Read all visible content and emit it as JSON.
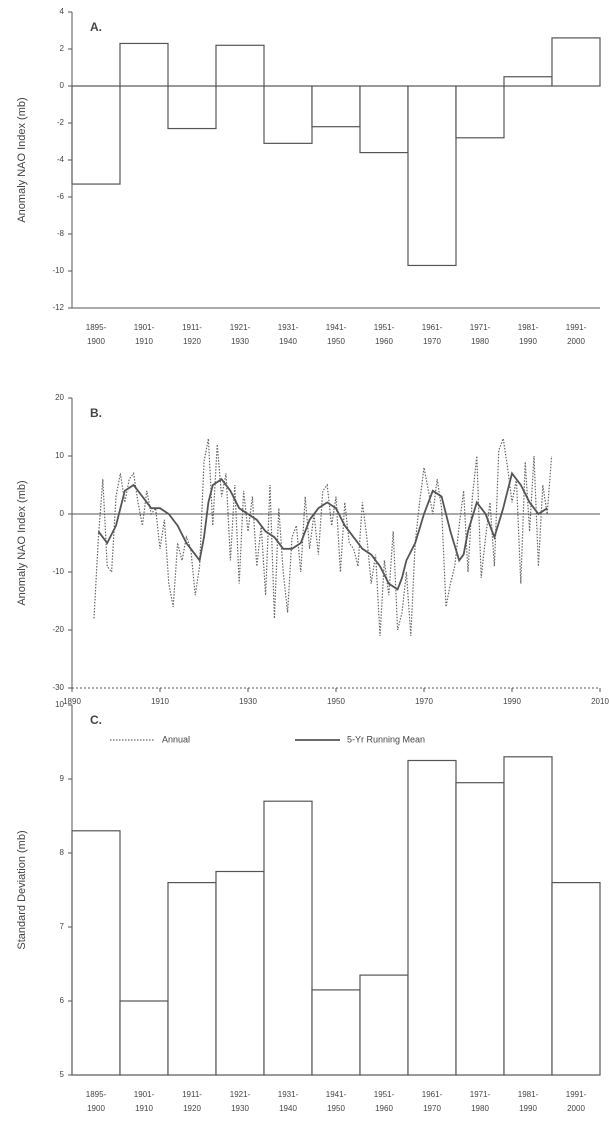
{
  "chart_data": [
    {
      "type": "bar",
      "panel_label": "A.",
      "y_label": "Anomaly NAO Index (mb)",
      "categories": [
        [
          "1895-",
          "1900"
        ],
        [
          "1901-",
          "1910"
        ],
        [
          "1911-",
          "1920"
        ],
        [
          "1921-",
          "1930"
        ],
        [
          "1931-",
          "1940"
        ],
        [
          "1941-",
          "1950"
        ],
        [
          "1951-",
          "1960"
        ],
        [
          "1961-",
          "1970"
        ],
        [
          "1971-",
          "1980"
        ],
        [
          "1981-",
          "1990"
        ],
        [
          "1991-",
          "2000"
        ]
      ],
      "values": [
        -5.3,
        2.3,
        -2.3,
        2.2,
        -3.1,
        -2.2,
        -3.6,
        -9.7,
        -2.8,
        0.5,
        2.6
      ],
      "color": "#ffffff",
      "ylim": [
        -12,
        4
      ],
      "yticks": [
        -12,
        -10,
        -8,
        -6,
        -4,
        -2,
        0,
        2,
        4
      ]
    },
    {
      "type": "line",
      "panel_label": "B.",
      "y_label": "Anomaly NAO Index (mb)",
      "xlim": [
        1890,
        2010
      ],
      "xticks": [
        1890,
        1910,
        1930,
        1950,
        1970,
        1990,
        2010
      ],
      "ylim": [
        -30,
        20
      ],
      "yticks": [
        -30,
        -20,
        -10,
        0,
        10,
        20
      ],
      "series": [
        {
          "name": "Annual",
          "color": "#666666",
          "style": "dotted",
          "x": [
            1895,
            1896,
            1897,
            1898,
            1899,
            1900,
            1901,
            1902,
            1903,
            1904,
            1905,
            1906,
            1907,
            1908,
            1909,
            1910,
            1911,
            1912,
            1913,
            1914,
            1915,
            1916,
            1917,
            1918,
            1919,
            1920,
            1921,
            1922,
            1923,
            1924,
            1925,
            1926,
            1927,
            1928,
            1929,
            1930,
            1931,
            1932,
            1933,
            1934,
            1935,
            1936,
            1937,
            1938,
            1939,
            1940,
            1941,
            1942,
            1943,
            1944,
            1945,
            1946,
            1947,
            1948,
            1949,
            1950,
            1951,
            1952,
            1953,
            1954,
            1955,
            1956,
            1957,
            1958,
            1959,
            1960,
            1961,
            1962,
            1963,
            1964,
            1965,
            1966,
            1967,
            1968,
            1969,
            1970,
            1971,
            1972,
            1973,
            1974,
            1975,
            1976,
            1977,
            1978,
            1979,
            1980,
            1981,
            1982,
            1983,
            1984,
            1985,
            1986,
            1987,
            1988,
            1989,
            1990,
            1991,
            1992,
            1993,
            1994,
            1995,
            1996,
            1997,
            1998,
            1999
          ],
          "values": [
            -18,
            -4,
            6,
            -9,
            -10,
            3,
            7,
            2,
            6,
            7,
            2,
            -2,
            4,
            0,
            1,
            -6,
            -1,
            -12,
            -16,
            -5,
            -8,
            -4,
            -6,
            -14,
            -9,
            9,
            13,
            -2,
            12,
            3,
            7,
            -8,
            5,
            -12,
            4,
            -3,
            3,
            -9,
            -2,
            -14,
            5,
            -18,
            1,
            -10,
            -17,
            -4,
            -2,
            -10,
            3,
            -6,
            0,
            -7,
            4,
            5,
            -2,
            3,
            -10,
            2,
            -5,
            -6,
            -9,
            2,
            -4,
            -12,
            -7,
            -21,
            -8,
            -14,
            -3,
            -20,
            -17,
            -10,
            -21,
            -5,
            2,
            8,
            4,
            0,
            6,
            1,
            -16,
            -12,
            -9,
            -2,
            4,
            -10,
            3,
            10,
            -11,
            -4,
            2,
            -9,
            11,
            13,
            8,
            2,
            6,
            -12,
            9,
            -3,
            10,
            -9,
            5,
            0,
            10
          ]
        },
        {
          "name": "5-Yr Running Mean",
          "color": "#555555",
          "style": "solid",
          "x": [
            1896,
            1898,
            1900,
            1902,
            1904,
            1906,
            1908,
            1910,
            1912,
            1914,
            1916,
            1918,
            1919,
            1920,
            1921,
            1922,
            1924,
            1926,
            1928,
            1930,
            1932,
            1934,
            1936,
            1938,
            1940,
            1942,
            1944,
            1946,
            1948,
            1950,
            1952,
            1954,
            1956,
            1958,
            1960,
            1962,
            1964,
            1965,
            1966,
            1968,
            1970,
            1972,
            1974,
            1976,
            1978,
            1979,
            1980,
            1982,
            1984,
            1986,
            1988,
            1990,
            1992,
            1994,
            1996,
            1998
          ],
          "values": [
            -3,
            -5,
            -2,
            4,
            5,
            3,
            1,
            1,
            0,
            -2,
            -5,
            -7,
            -8,
            -4,
            2,
            5,
            6,
            4,
            1,
            0,
            -1,
            -3,
            -4,
            -6,
            -6,
            -5,
            -1,
            1,
            2,
            1,
            -2,
            -4,
            -6,
            -7,
            -9,
            -12,
            -13,
            -11,
            -8,
            -5,
            0,
            4,
            3,
            -3,
            -8,
            -7,
            -3,
            2,
            0,
            -4,
            1,
            7,
            5,
            2,
            0,
            1
          ]
        }
      ]
    },
    {
      "type": "bar",
      "panel_label": "C.",
      "y_label": "Standard Deviation (mb)",
      "categories": [
        [
          "1895-",
          "1900"
        ],
        [
          "1901-",
          "1910"
        ],
        [
          "1911-",
          "1920"
        ],
        [
          "1921-",
          "1930"
        ],
        [
          "1931-",
          "1940"
        ],
        [
          "1941-",
          "1950"
        ],
        [
          "1951-",
          "1960"
        ],
        [
          "1961-",
          "1970"
        ],
        [
          "1971-",
          "1980"
        ],
        [
          "1981-",
          "1990"
        ],
        [
          "1991-",
          "2000"
        ]
      ],
      "values": [
        8.3,
        6.0,
        7.6,
        7.75,
        8.7,
        6.15,
        6.35,
        9.25,
        8.95,
        9.3,
        7.6
      ],
      "color": "#ffffff",
      "ylim": [
        5,
        10
      ],
      "yticks": [
        5,
        6,
        7,
        8,
        9,
        10
      ]
    }
  ]
}
